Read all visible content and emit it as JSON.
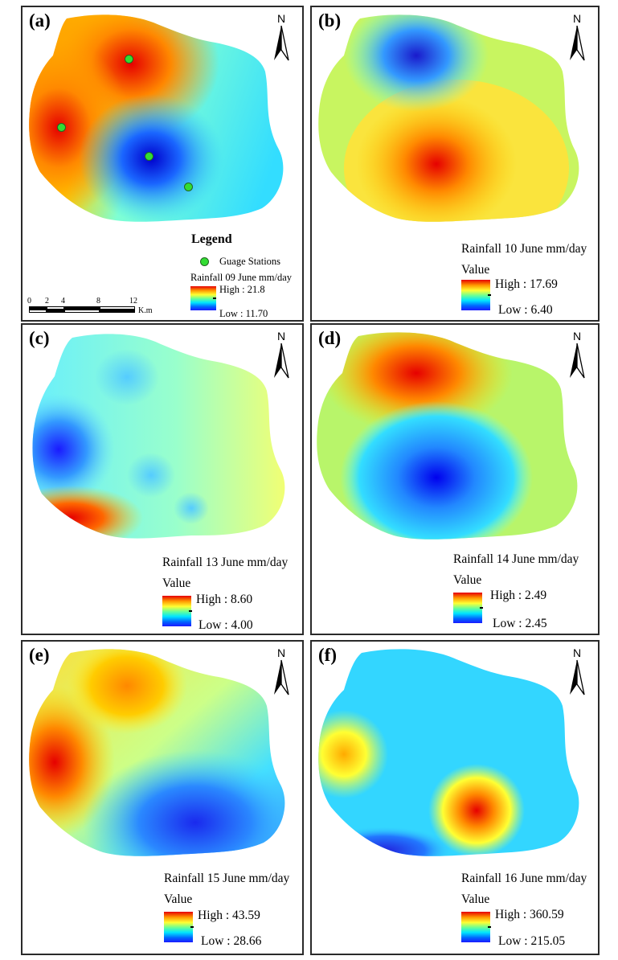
{
  "panels": [
    {
      "id": "a",
      "label": "(a)",
      "title": "Rainfall 09 June mm/day",
      "value_label": "",
      "high": "High : 21.8",
      "low": "Low : 11.70"
    },
    {
      "id": "b",
      "label": "(b)",
      "title": "Rainfall 10 June mm/day",
      "value_label": "Value",
      "high": "High : 17.69",
      "low": "Low : 6.40"
    },
    {
      "id": "c",
      "label": "(c)",
      "title": "Rainfall 13 June mm/day",
      "value_label": "Value",
      "high": "High : 8.60",
      "low": "Low : 4.00"
    },
    {
      "id": "d",
      "label": "(d)",
      "title": "Rainfall 14 June mm/day",
      "value_label": "Value",
      "high": "High : 2.49",
      "low": "Low : 2.45"
    },
    {
      "id": "e",
      "label": "(e)",
      "title": "Rainfall 15 June mm/day",
      "value_label": "Value",
      "high": "High : 43.59",
      "low": "Low : 28.66"
    },
    {
      "id": "f",
      "label": "(f)",
      "title": "Rainfall 16 June mm/day",
      "value_label": "Value",
      "high": "High : 360.59",
      "low": "Low : 215.05"
    }
  ],
  "legend": {
    "title": "Legend",
    "gauge_label": "Guage Stations"
  },
  "north_label": "N",
  "scale": {
    "ticks": [
      "0",
      "2",
      "4",
      "8",
      "12"
    ],
    "unit": "K.m"
  },
  "colors": {
    "high": "#e60000",
    "mid": "#ffff33",
    "low": "#1a1aff",
    "gauge": "#33dd33"
  }
}
